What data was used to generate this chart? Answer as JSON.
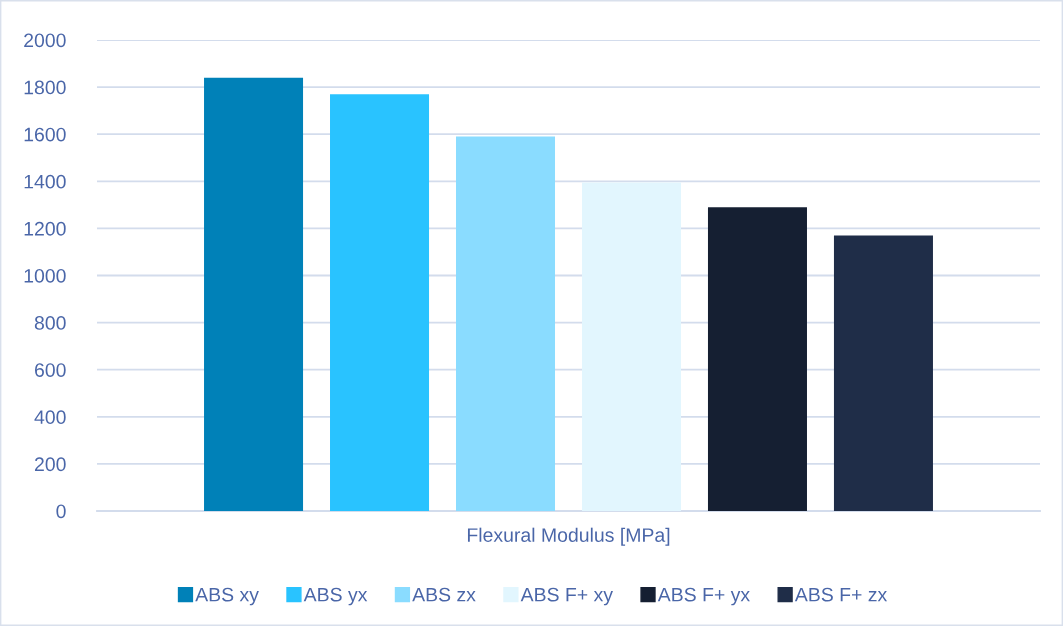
{
  "chart_data": {
    "type": "bar",
    "categories": [
      "Flexural Modulus [MPa]"
    ],
    "series": [
      {
        "name": "ABS xy",
        "color": "#0081b8",
        "values": [
          1840
        ]
      },
      {
        "name": "ABS yx",
        "color": "#29c3ff",
        "values": [
          1770
        ]
      },
      {
        "name": "ABS zx",
        "color": "#8adcff",
        "values": [
          1590
        ]
      },
      {
        "name": "ABS F+ xy",
        "color": "#e2f6fe",
        "values": [
          1395
        ]
      },
      {
        "name": "ABS F+ yx",
        "color": "#151f32",
        "values": [
          1290
        ]
      },
      {
        "name": "ABS F+ zx",
        "color": "#1f2d48",
        "values": [
          1170
        ]
      }
    ],
    "ylim": [
      0,
      2000
    ],
    "yticks": [
      0,
      200,
      400,
      600,
      800,
      1000,
      1200,
      1400,
      1600,
      1800,
      2000
    ],
    "grid": "y",
    "legend": "bottom"
  }
}
